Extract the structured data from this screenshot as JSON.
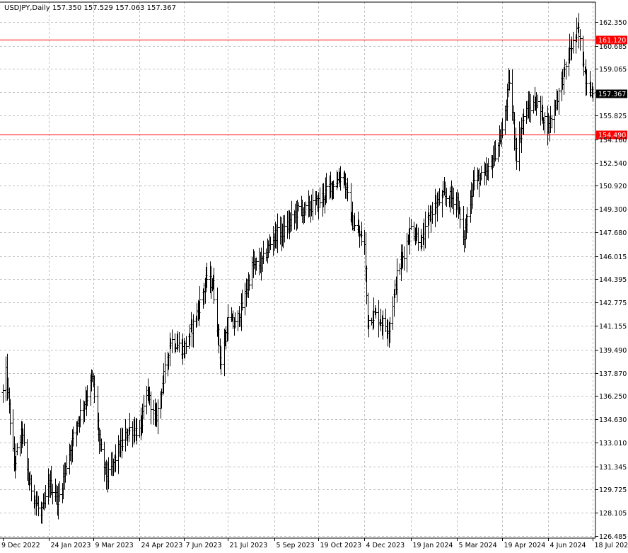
{
  "header": {
    "symbol": "USDJPY,Daily",
    "ohlc": "157.350 157.529 157.063 157.367"
  },
  "colors": {
    "background": "#ffffff",
    "grid": "#c0c0c0",
    "bars": "#000000",
    "level_line": "#ff0000",
    "current_price_bg": "#000000"
  },
  "chart_data": {
    "type": "bar",
    "chart_style": "ohlc",
    "grid": true,
    "y_axis_position": "right",
    "ylim": [
      126.485,
      162.35
    ],
    "y_ticks": [
      "162.350",
      "160.685",
      "159.065",
      "157.445",
      "155.825",
      "154.160",
      "152.540",
      "150.920",
      "149.300",
      "147.680",
      "146.015",
      "144.395",
      "142.775",
      "141.155",
      "139.490",
      "137.870",
      "136.250",
      "134.630",
      "133.010",
      "131.345",
      "129.725",
      "128.105",
      "126.485"
    ],
    "x_ticks": [
      "9 Dec 2022",
      "24 Jan 2023",
      "9 Mar 2023",
      "24 Apr 2023",
      "7 Jun 2023",
      "21 Jul 2023",
      "5 Sep 2023",
      "19 Oct 2023",
      "4 Dec 2023",
      "19 Jan 2024",
      "5 Mar 2024",
      "19 Apr 2024",
      "4 Jun 2024",
      "18 Jul 2024"
    ],
    "price_path": [
      {
        "date": "9 Dec 2022",
        "close": 136.5
      },
      {
        "date": "12 Dec 2022",
        "close": 137.8
      },
      {
        "date": "20 Dec 2022",
        "close": 131.5
      },
      {
        "date": "28 Dec 2022",
        "close": 133.8
      },
      {
        "date": "3 Jan 2023",
        "close": 130.5
      },
      {
        "date": "16 Jan 2023",
        "close": 127.8
      },
      {
        "date": "24 Jan 2023",
        "close": 130.2
      },
      {
        "date": "2 Feb 2023",
        "close": 129.0
      },
      {
        "date": "10 Feb 2023",
        "close": 131.5
      },
      {
        "date": "21 Feb 2023",
        "close": 134.5
      },
      {
        "date": "2 Mar 2023",
        "close": 136.2
      },
      {
        "date": "8 Mar 2023",
        "close": 137.5
      },
      {
        "date": "16 Mar 2023",
        "close": 132.5
      },
      {
        "date": "23 Mar 2023",
        "close": 130.5
      },
      {
        "date": "3 Apr 2023",
        "close": 132.5
      },
      {
        "date": "14 Apr 2023",
        "close": 134.0
      },
      {
        "date": "24 Apr 2023",
        "close": 133.8
      },
      {
        "date": "2 May 2023",
        "close": 136.5
      },
      {
        "date": "10 May 2023",
        "close": 134.5
      },
      {
        "date": "19 May 2023",
        "close": 138.0
      },
      {
        "date": "25 May 2023",
        "close": 140.2
      },
      {
        "date": "7 Jun 2023",
        "close": 139.5
      },
      {
        "date": "20 Jun 2023",
        "close": 142.0
      },
      {
        "date": "30 Jun 2023",
        "close": 144.5
      },
      {
        "date": "6 Jul 2023",
        "close": 144.0
      },
      {
        "date": "14 Jul 2023",
        "close": 138.5
      },
      {
        "date": "21 Jul 2023",
        "close": 141.5
      },
      {
        "date": "28 Jul 2023",
        "close": 141.2
      },
      {
        "date": "4 Aug 2023",
        "close": 142.5
      },
      {
        "date": "14 Aug 2023",
        "close": 145.3
      },
      {
        "date": "23 Aug 2023",
        "close": 145.5
      },
      {
        "date": "5 Sep 2023",
        "close": 147.5
      },
      {
        "date": "15 Sep 2023",
        "close": 147.8
      },
      {
        "date": "29 Sep 2023",
        "close": 149.3
      },
      {
        "date": "5 Oct 2023",
        "close": 149.2
      },
      {
        "date": "19 Oct 2023",
        "close": 149.8
      },
      {
        "date": "1 Nov 2023",
        "close": 151.0
      },
      {
        "date": "13 Nov 2023",
        "close": 151.7
      },
      {
        "date": "21 Nov 2023",
        "close": 148.5
      },
      {
        "date": "30 Nov 2023",
        "close": 147.3
      },
      {
        "date": "4 Dec 2023",
        "close": 146.8
      },
      {
        "date": "7 Dec 2023",
        "close": 141.5
      },
      {
        "date": "13 Dec 2023",
        "close": 142.0
      },
      {
        "date": "28 Dec 2023",
        "close": 141.0
      },
      {
        "date": "5 Jan 2024",
        "close": 144.6
      },
      {
        "date": "19 Jan 2024",
        "close": 148.0
      },
      {
        "date": "30 Jan 2024",
        "close": 147.0
      },
      {
        "date": "9 Feb 2024",
        "close": 149.3
      },
      {
        "date": "21 Feb 2024",
        "close": 150.2
      },
      {
        "date": "5 Mar 2024",
        "close": 150.0
      },
      {
        "date": "11 Mar 2024",
        "close": 147.0
      },
      {
        "date": "21 Mar 2024",
        "close": 151.3
      },
      {
        "date": "3 Apr 2024",
        "close": 151.6
      },
      {
        "date": "19 Apr 2024",
        "close": 154.6
      },
      {
        "date": "26 Apr 2024",
        "close": 158.3
      },
      {
        "date": "3 May 2024",
        "close": 153.0
      },
      {
        "date": "10 May 2024",
        "close": 155.8
      },
      {
        "date": "22 May 2024",
        "close": 156.8
      },
      {
        "date": "4 Jun 2024",
        "close": 155.0
      },
      {
        "date": "14 Jun 2024",
        "close": 157.4
      },
      {
        "date": "26 Jun 2024",
        "close": 160.5
      },
      {
        "date": "3 Jul 2024",
        "close": 161.7
      },
      {
        "date": "11 Jul 2024",
        "close": 158.5
      },
      {
        "date": "18 Jul 2024",
        "close": 157.367
      }
    ],
    "levels": [
      {
        "price": 161.12,
        "label": "161.120"
      },
      {
        "price": 154.49,
        "label": "154.490"
      }
    ],
    "current_price": {
      "price": 157.367,
      "label": "157.367"
    }
  }
}
